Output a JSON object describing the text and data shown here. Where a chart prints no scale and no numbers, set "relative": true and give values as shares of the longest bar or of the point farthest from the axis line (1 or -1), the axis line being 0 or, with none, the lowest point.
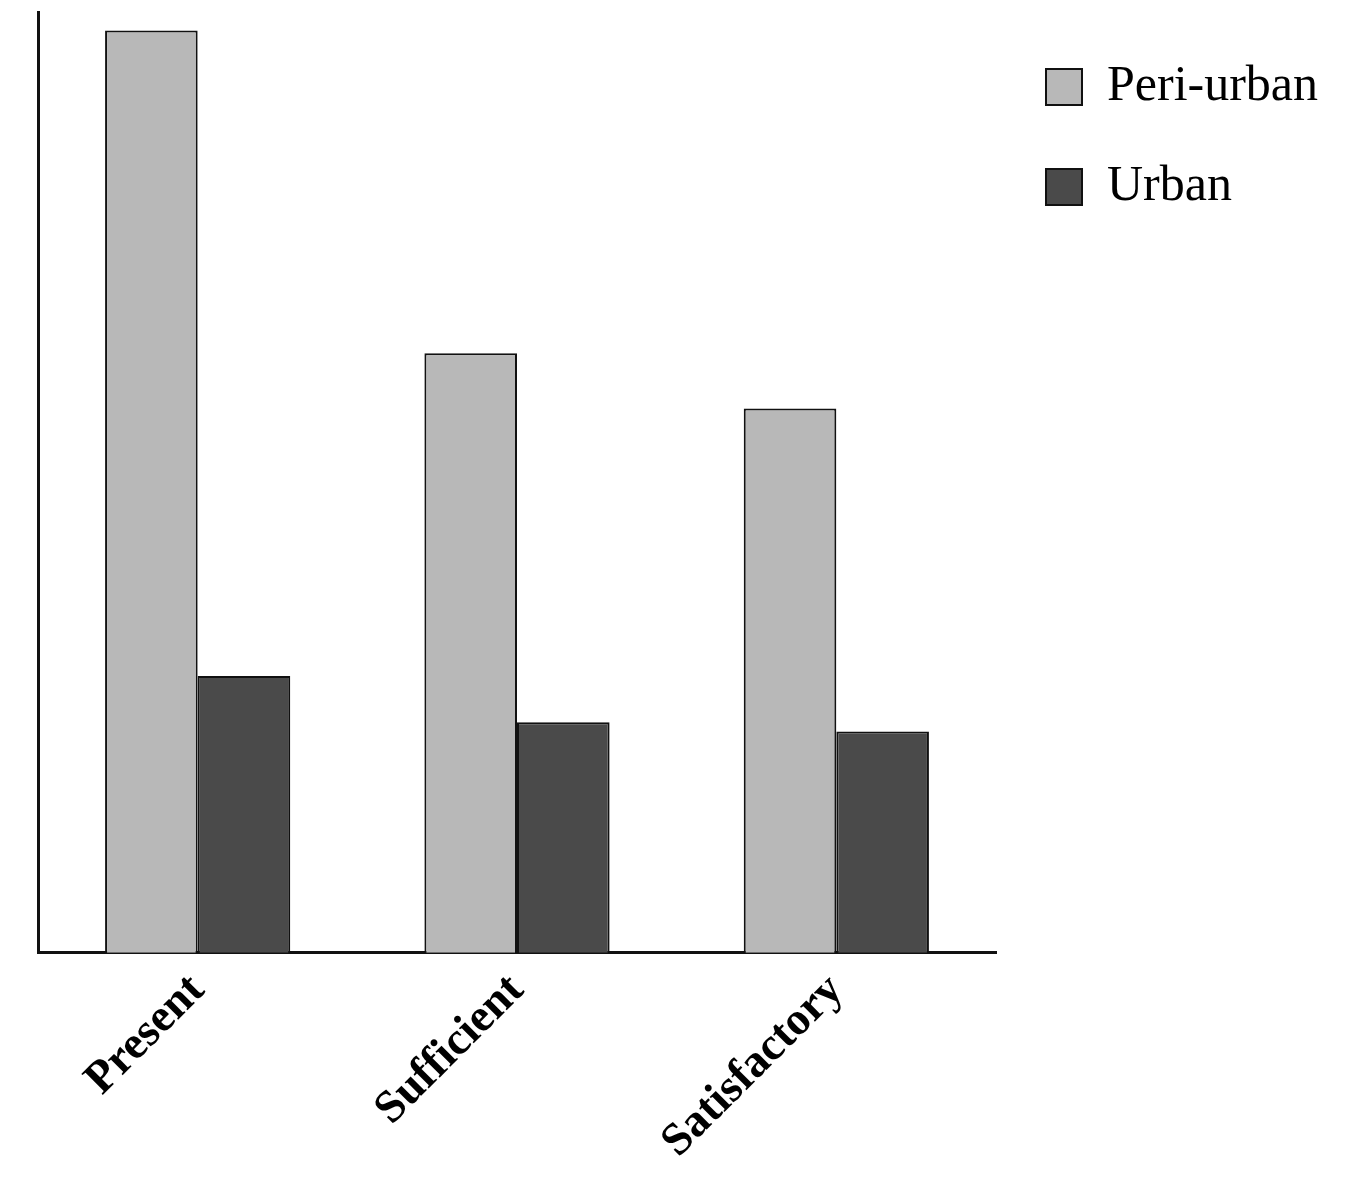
{
  "chart_data": {
    "type": "bar",
    "relative": true,
    "categories": [
      "Present",
      "Sufficient",
      "Satisfactory"
    ],
    "series": [
      {
        "name": "Peri-urban",
        "color": "#b8b8b8",
        "values": [
          1,
          0.65,
          0.59
        ]
      },
      {
        "name": "Urban",
        "color": "#4a4a4a",
        "values": [
          0.3,
          0.25,
          0.24
        ]
      }
    ],
    "legend": "right"
  }
}
